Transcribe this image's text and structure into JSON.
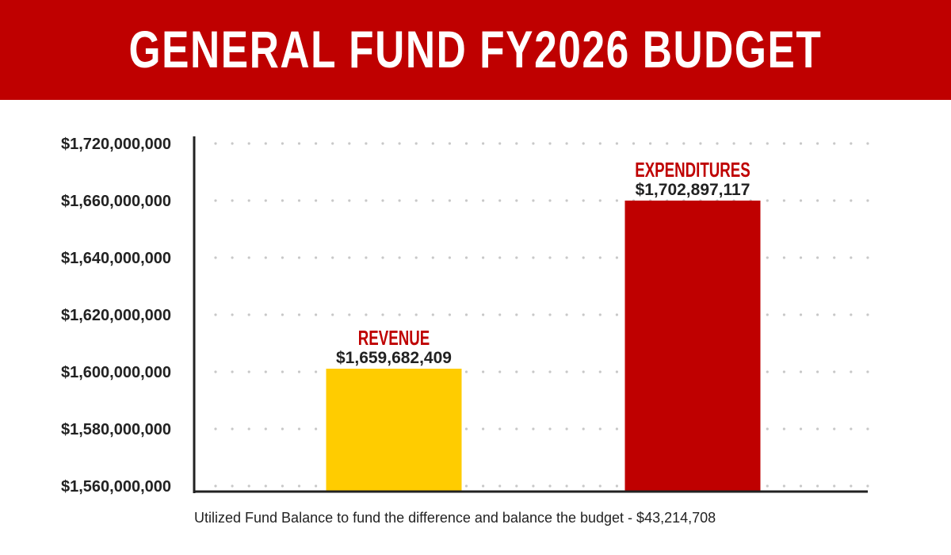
{
  "header": {
    "title": "GENERAL FUND FY2026 BUDGET"
  },
  "chart_data": {
    "type": "bar",
    "title": "GENERAL FUND FY2026 BUDGET",
    "xlabel": "",
    "ylabel": "",
    "y_tick_labels": [
      "$1,720,000,000",
      "$1,660,000,000",
      "$1,640,000,000",
      "$1,620,000,000",
      "$1,600,000,000",
      "$1,580,000,000",
      "$1,560,000,000"
    ],
    "grid": "dotted horizontal",
    "categories": [
      "REVENUE",
      "EXPENDITURES"
    ],
    "values": [
      1659682409,
      1702897117
    ],
    "value_labels": [
      "$1,659,682,409",
      "$1,702,897,117"
    ],
    "bar_fill_fraction": [
      0.353,
      0.836
    ],
    "colors": [
      "#ffcc00",
      "#bf0000"
    ],
    "label_color": "#bf0000"
  },
  "footnote": "Utilized Fund Balance to fund the difference and balance the budget - $43,214,708"
}
